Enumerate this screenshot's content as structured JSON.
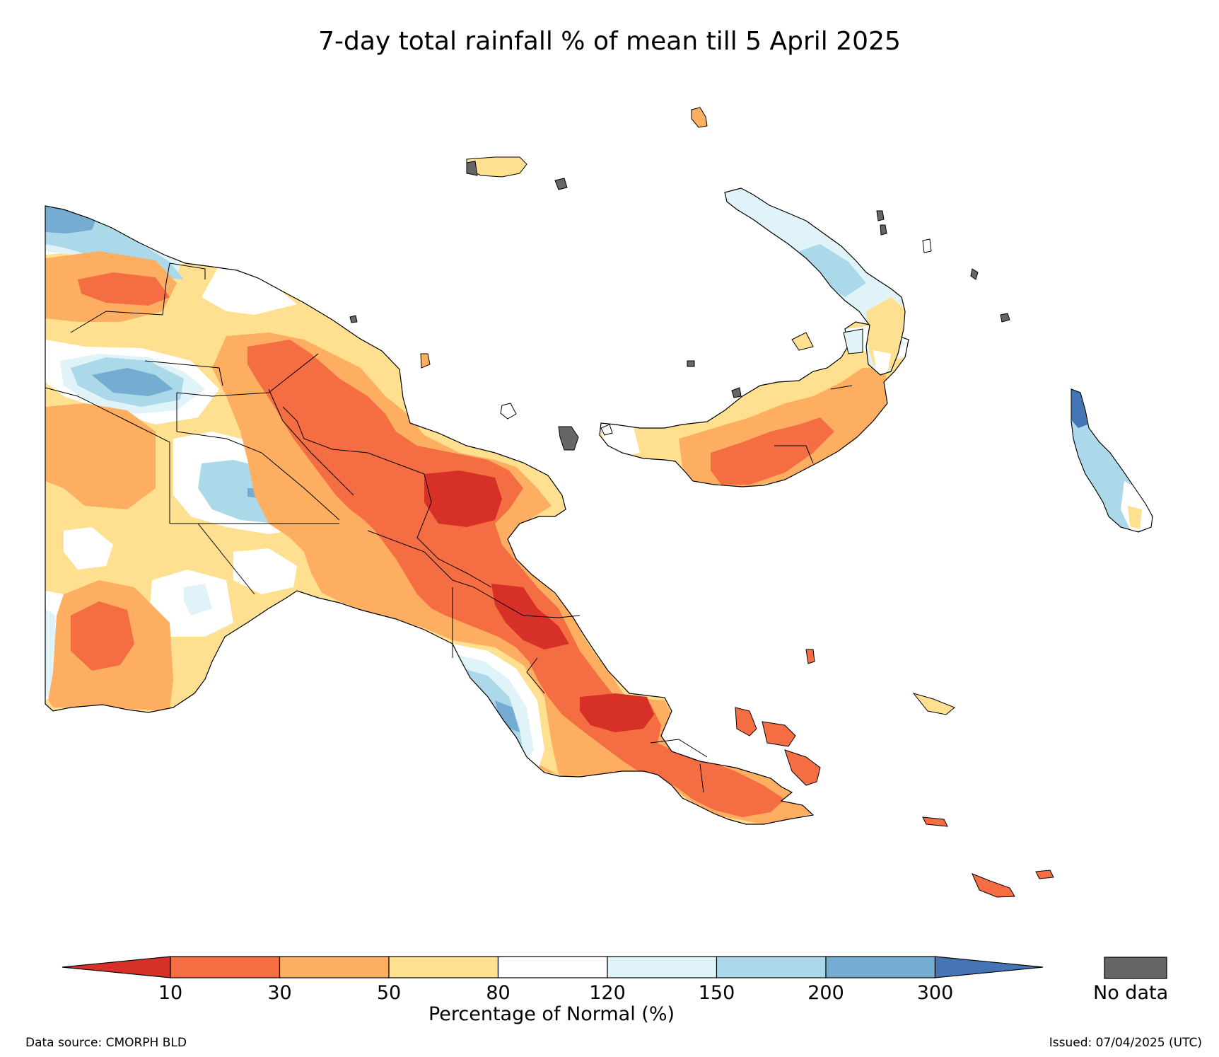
{
  "title": "7-day total rainfall % of mean till 5 April 2025",
  "legend": {
    "label": "Percentage of Normal (%)",
    "ticks": [
      "10",
      "30",
      "50",
      "80",
      "120",
      "150",
      "200",
      "300"
    ],
    "bins": [
      {
        "range": "<10",
        "color": "#d73027"
      },
      {
        "range": "10-30",
        "color": "#f46d43"
      },
      {
        "range": "30-50",
        "color": "#fdae61"
      },
      {
        "range": "50-80",
        "color": "#fee090"
      },
      {
        "range": "80-120",
        "color": "#ffffff"
      },
      {
        "range": "120-150",
        "color": "#e0f3f8"
      },
      {
        "range": "150-200",
        "color": "#abd9e9"
      },
      {
        "range": "200-300",
        "color": "#74add1"
      },
      {
        "range": ">300",
        "color": "#4575b4"
      }
    ],
    "nodata_label": "No data",
    "nodata_color": "#666666"
  },
  "footer": {
    "source": "Data source: CMORPH BLD",
    "issued": "Issued: 07/04/2025 (UTC)"
  }
}
